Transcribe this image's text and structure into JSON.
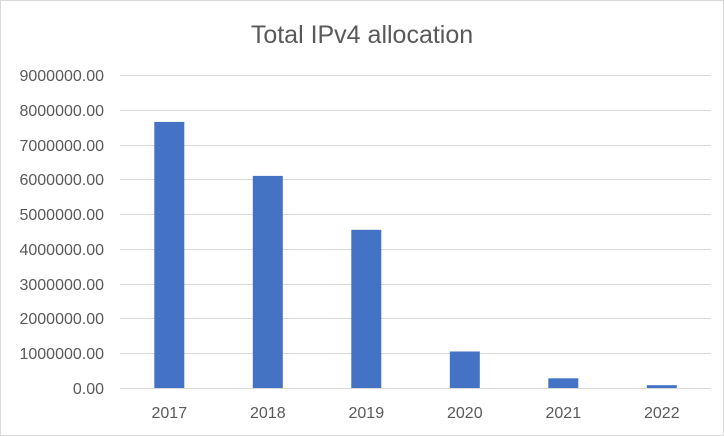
{
  "chart_data": {
    "type": "bar",
    "title": "Total IPv4 allocation",
    "xlabel": "",
    "ylabel": "",
    "categories": [
      "2017",
      "2018",
      "2019",
      "2020",
      "2021",
      "2022"
    ],
    "values": [
      7650000,
      6100000,
      4550000,
      1050000,
      280000,
      80000
    ],
    "ylim": [
      0,
      9000000
    ],
    "yticks": [
      0,
      1000000,
      2000000,
      3000000,
      4000000,
      5000000,
      6000000,
      7000000,
      8000000,
      9000000
    ],
    "ytick_labels": [
      "0.00",
      "1000000.00",
      "2000000.00",
      "3000000.00",
      "4000000.00",
      "5000000.00",
      "6000000.00",
      "7000000.00",
      "8000000.00",
      "9000000.00"
    ],
    "grid": true,
    "legend": "none",
    "bar_color": "#4472c4",
    "grid_color": "#d9d9d9",
    "text_color": "#595959"
  }
}
